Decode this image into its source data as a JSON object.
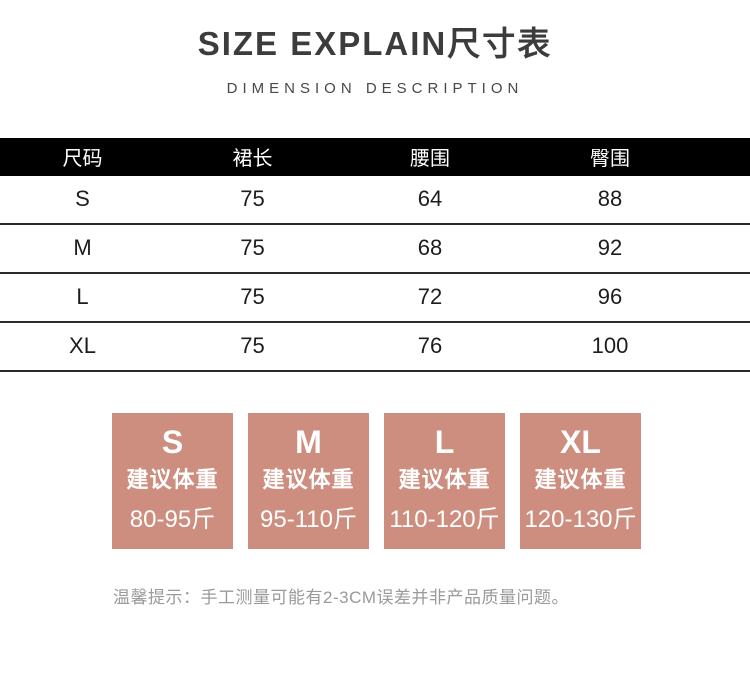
{
  "header": {
    "title": "SIZE EXPLAIN尺寸表",
    "subtitle": "DIMENSION DESCRIPTION"
  },
  "size_table": {
    "columns": [
      "尺码",
      "裙长",
      "腰围",
      "臀围"
    ],
    "rows": [
      {
        "size": "S",
        "values": [
          "75",
          "64",
          "88"
        ]
      },
      {
        "size": "M",
        "values": [
          "75",
          "68",
          "92"
        ]
      },
      {
        "size": "L",
        "values": [
          "75",
          "72",
          "96"
        ]
      },
      {
        "size": "XL",
        "values": [
          "75",
          "76",
          "100"
        ]
      }
    ]
  },
  "weight_boxes": [
    {
      "size": "S",
      "label": "建议体重",
      "range": "80-95斤"
    },
    {
      "size": "M",
      "label": "建议体重",
      "range": "95-110斤"
    },
    {
      "size": "L",
      "label": "建议体重",
      "range": "110-120斤"
    },
    {
      "size": "XL",
      "label": "建议体重",
      "range": "120-130斤"
    }
  ],
  "note": "温馨提示：手工测量可能有2-3CM误差并非产品质量问题。",
  "colors": {
    "accent_box": "#cd8e80",
    "header_bar": "#000000",
    "row_divider": "#2b2b2b",
    "note_text": "#9a9a9a"
  }
}
